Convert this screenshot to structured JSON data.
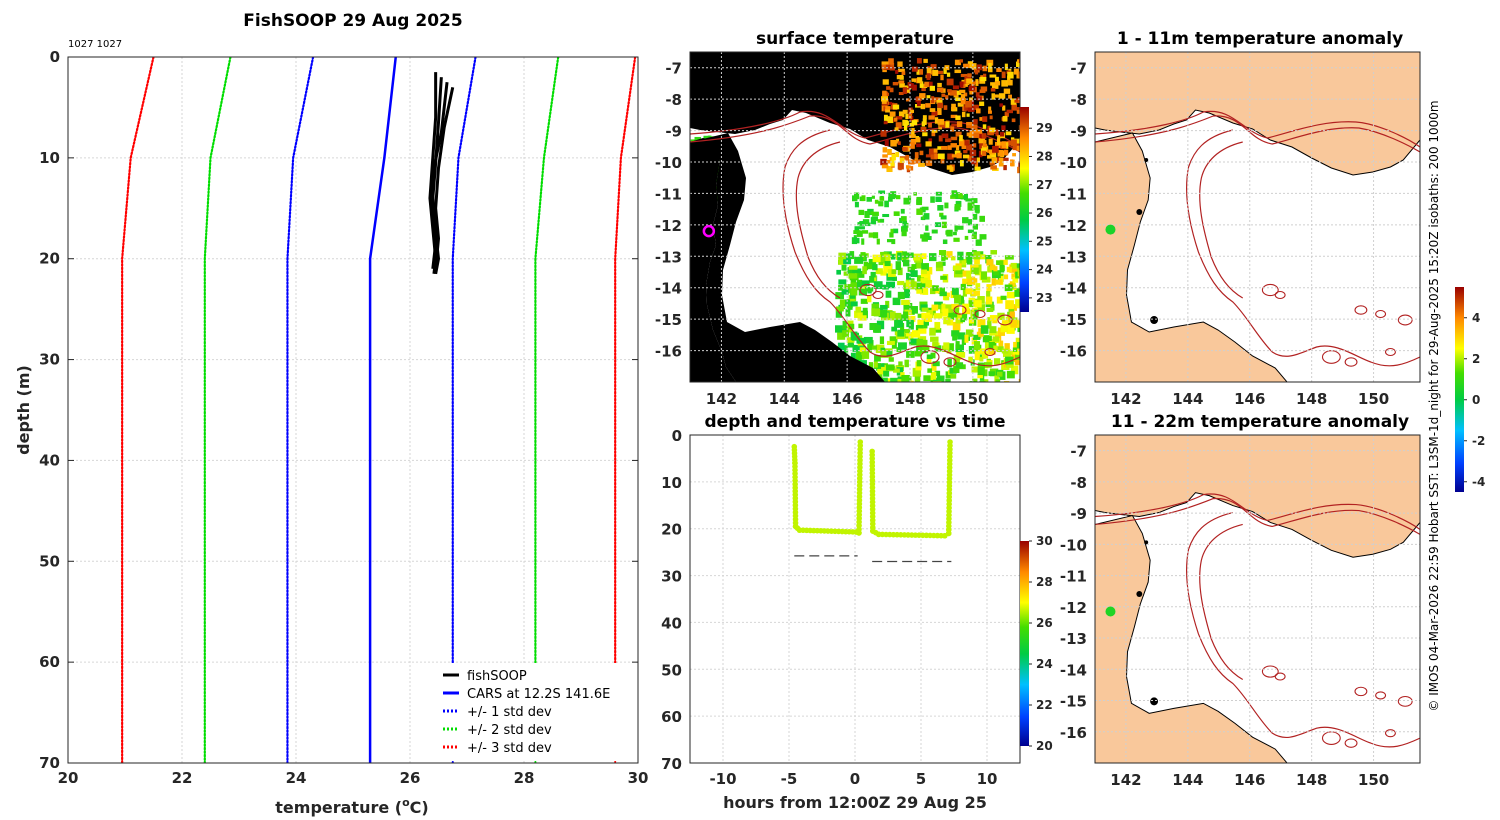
{
  "figure": {
    "credit": "© IMOS 04-Mar-2026 22:59 Hobart SST: L3SM-1d_night for 29-Aug-2025 15:20Z isobaths: 200  1000m",
    "colors": {
      "land": "#f9c89b",
      "ocean": "#ffffff",
      "isobath": "#b22222",
      "coast": "#000000"
    }
  },
  "chart_data": [
    {
      "id": "profile",
      "type": "line",
      "title": "FishSOOP 29 Aug 2025",
      "subtitle": "1027 1027",
      "xlabel": "temperature (°C)",
      "ylabel": "depth (m)",
      "xlim": [
        20,
        30
      ],
      "ylim": [
        0,
        70
      ],
      "y_reversed": true,
      "xticks": [
        "20",
        "22",
        "24",
        "26",
        "28",
        "30"
      ],
      "yticks": [
        "0",
        "10",
        "20",
        "30",
        "40",
        "50",
        "60",
        "70"
      ],
      "grid": true,
      "legend_position": "bottom-right",
      "legend": [
        {
          "label": "fishSOOP",
          "color": "#000000",
          "style": "solid"
        },
        {
          "label": "CARS at 12.2S 141.6E",
          "color": "#0000ff",
          "style": "solid"
        },
        {
          "label": "+/- 1 std dev",
          "color": "#0000ff",
          "style": "dotted"
        },
        {
          "label": "+/- 2 std dev",
          "color": "#00dd00",
          "style": "dotted"
        },
        {
          "label": "+/- 3 std dev",
          "color": "#ff0000",
          "style": "dotted"
        }
      ],
      "series": [
        {
          "name": "CARS",
          "color": "#0000ff",
          "style": "solid",
          "temps": [
            25.75,
            25.55,
            25.3,
            25.3
          ],
          "depths": [
            0,
            10,
            20,
            70
          ]
        },
        {
          "name": "-1 std",
          "color": "#0000ff",
          "style": "dotted",
          "temps": [
            24.3,
            23.95,
            23.85,
            23.85
          ],
          "depths": [
            0,
            10,
            20,
            70
          ]
        },
        {
          "name": "+1 std",
          "color": "#0000ff",
          "style": "dotted",
          "temps": [
            27.15,
            26.85,
            26.75,
            26.75
          ],
          "depths": [
            0,
            10,
            20,
            70
          ]
        },
        {
          "name": "-2 std",
          "color": "#00dd00",
          "style": "dotted",
          "temps": [
            22.85,
            22.5,
            22.4,
            22.4
          ],
          "depths": [
            0,
            10,
            20,
            70
          ]
        },
        {
          "name": "+2 std",
          "color": "#00dd00",
          "style": "dotted",
          "temps": [
            28.6,
            28.35,
            28.2,
            28.2
          ],
          "depths": [
            0,
            10,
            20,
            70
          ]
        },
        {
          "name": "-3 std",
          "color": "#ff0000",
          "style": "dotted",
          "temps": [
            21.5,
            21.1,
            20.95,
            20.95
          ],
          "depths": [
            0,
            10,
            20,
            70
          ]
        },
        {
          "name": "+3 std",
          "color": "#ff0000",
          "style": "dotted",
          "temps": [
            29.95,
            29.7,
            29.6,
            29.6
          ],
          "depths": [
            0,
            10,
            20,
            70
          ]
        }
      ],
      "fishsoop_casts": [
        {
          "temps": [
            26.45,
            26.45,
            26.4,
            26.35,
            26.4,
            26.45,
            26.42
          ],
          "depths": [
            1.5,
            6,
            10,
            14,
            17,
            20,
            21.5
          ]
        },
        {
          "temps": [
            26.55,
            26.5,
            26.45,
            26.4,
            26.45,
            26.5,
            26.45
          ],
          "depths": [
            2,
            6.5,
            10.5,
            14,
            17.5,
            20,
            21.5
          ]
        },
        {
          "temps": [
            26.75,
            26.6,
            26.5,
            26.45,
            26.5,
            26.45
          ],
          "depths": [
            3,
            7,
            11,
            15,
            18,
            21
          ]
        },
        {
          "temps": [
            26.65,
            26.55,
            26.4,
            26.4,
            26.45,
            26.4
          ],
          "depths": [
            2.5,
            7.5,
            11.5,
            15,
            18.5,
            21
          ]
        }
      ]
    },
    {
      "id": "surface-temperature",
      "type": "heatmap",
      "title": "surface temperature",
      "xlim": [
        141,
        151.5
      ],
      "ylim": [
        -17,
        -6.5
      ],
      "xticks": [
        "142",
        "144",
        "146",
        "148",
        "150"
      ],
      "yticks": [
        "-7",
        "-8",
        "-9",
        "-10",
        "-11",
        "-12",
        "-13",
        "-14",
        "-15",
        "-16"
      ],
      "colorbar": {
        "min": 22.5,
        "max": 29.75,
        "ticks": [
          "23",
          "24",
          "25",
          "26",
          "27",
          "28",
          "29"
        ]
      },
      "observation": {
        "lon": 141.6,
        "lat": -12.2
      }
    },
    {
      "id": "anomaly-1-11m",
      "type": "heatmap",
      "title": "1 - 11m temperature anomaly",
      "xlim": [
        141,
        151.5
      ],
      "ylim": [
        -17,
        -6.5
      ],
      "xticks": [
        "142",
        "144",
        "146",
        "148",
        "150"
      ],
      "yticks": [
        "-7",
        "-8",
        "-9",
        "-10",
        "-11",
        "-12",
        "-13",
        "-14",
        "-15",
        "-16"
      ],
      "colorbar": {
        "min": -4.5,
        "max": 5.5,
        "ticks": [
          "4",
          "2",
          "0",
          "-2",
          "-4"
        ]
      },
      "observation": {
        "lon": 141.5,
        "lat": -12.15,
        "value": 0.5
      }
    },
    {
      "id": "anomaly-11-22m",
      "type": "heatmap",
      "title": "11 - 22m temperature anomaly",
      "xlim": [
        141,
        151.5
      ],
      "ylim": [
        -17,
        -6.5
      ],
      "xticks": [
        "142",
        "144",
        "146",
        "148",
        "150"
      ],
      "yticks": [
        "-7",
        "-8",
        "-9",
        "-10",
        "-11",
        "-12",
        "-13",
        "-14",
        "-15",
        "-16"
      ],
      "observation": {
        "lon": 141.5,
        "lat": -12.15,
        "value": 0.6
      }
    },
    {
      "id": "depth-time",
      "type": "scatter",
      "title": "depth and temperature vs time",
      "xlabel": "hours from 12:00Z 29 Aug 25",
      "xlim": [
        -12.5,
        12.5
      ],
      "ylim": [
        0,
        70
      ],
      "y_reversed": true,
      "xticks": [
        "-10",
        "-5",
        "0",
        "5",
        "10"
      ],
      "yticks": [
        "0",
        "10",
        "20",
        "30",
        "40",
        "50",
        "60",
        "70"
      ],
      "colorbar": {
        "min": 20,
        "max": 30,
        "ticks": [
          "30",
          "28",
          "26",
          "24",
          "22",
          "20"
        ]
      },
      "segments": [
        {
          "path": [
            [
              -4.6,
              2.5
            ],
            [
              -4.55,
              6
            ],
            [
              -4.5,
              19.5
            ],
            [
              -4.2,
              20.3
            ],
            [
              0.1,
              20.7
            ],
            [
              0.3,
              20.9
            ],
            [
              0.4,
              1.5
            ]
          ],
          "temp": 26.6
        },
        {
          "path": [
            [
              1.3,
              3.5
            ],
            [
              1.35,
              20.5
            ],
            [
              1.8,
              21.2
            ],
            [
              6.8,
              21.5
            ],
            [
              7.1,
              21.0
            ],
            [
              7.2,
              1.5
            ]
          ],
          "temp": 26.6
        }
      ],
      "bottom_depth_markers": [
        {
          "from": -4.6,
          "to": 0.2,
          "depth": 25.8
        },
        {
          "from": 1.3,
          "to": 7.3,
          "depth": 27.0
        }
      ]
    }
  ]
}
